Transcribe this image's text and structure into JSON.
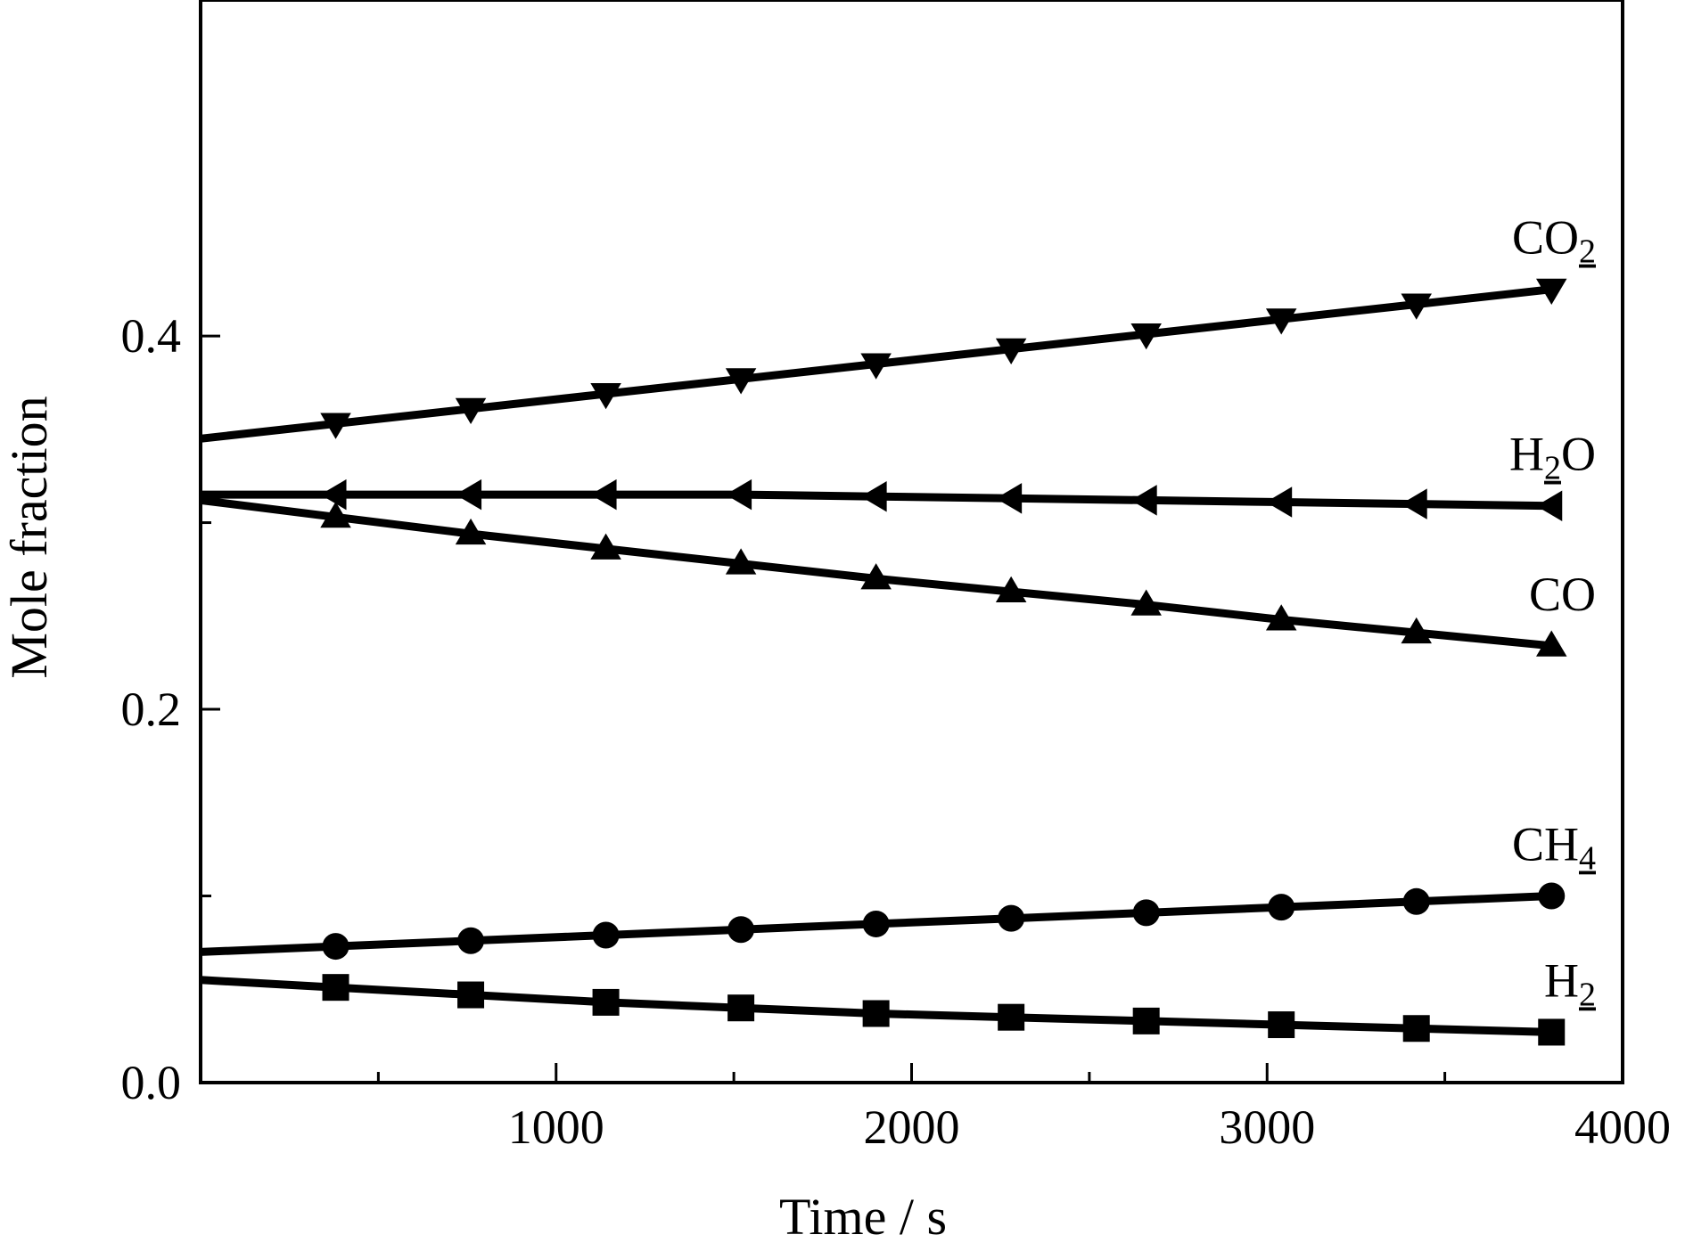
{
  "chart_data": {
    "type": "line",
    "xlabel": "Time / s",
    "ylabel": "Mole fraction",
    "xlim": [
      0,
      4000
    ],
    "ylim": [
      0,
      0.58
    ],
    "x_ticks": [
      1000,
      2000,
      3000,
      4000
    ],
    "x_minor_ticks": [
      500,
      1500,
      2500,
      3500
    ],
    "y_ticks": [
      0.0,
      0.2,
      0.4
    ],
    "y_tick_labels": [
      "0.0",
      "0.2",
      "0.4"
    ],
    "y_minor_ticks": [
      0.1,
      0.3
    ],
    "grid": false,
    "legend": "none; series labelled directly at right end of each line",
    "x": [
      0,
      380,
      760,
      1140,
      1520,
      1900,
      2280,
      2660,
      3040,
      3420,
      3800
    ],
    "series": [
      {
        "name": "CO2",
        "label_main": "CO",
        "label_sub": "2",
        "marker": "triangle-down",
        "values": [
          0.345,
          0.353,
          0.361,
          0.369,
          0.377,
          0.385,
          0.393,
          0.401,
          0.409,
          0.417,
          0.425
        ]
      },
      {
        "name": "H2O",
        "label_main": "H",
        "label_sub": "2",
        "label_after": "O",
        "marker": "triangle-left",
        "values": [
          0.315,
          0.315,
          0.315,
          0.315,
          0.315,
          0.314,
          0.313,
          0.312,
          0.311,
          0.31,
          0.309
        ]
      },
      {
        "name": "CO",
        "label_main": "CO",
        "marker": "triangle-up",
        "values": [
          0.312,
          0.303,
          0.294,
          0.286,
          0.278,
          0.27,
          0.263,
          0.256,
          0.248,
          0.241,
          0.234
        ]
      },
      {
        "name": "CH4",
        "label_main": "CH",
        "label_sub": "4",
        "marker": "circle",
        "values": [
          0.07,
          0.073,
          0.076,
          0.079,
          0.082,
          0.085,
          0.088,
          0.091,
          0.094,
          0.097,
          0.1
        ]
      },
      {
        "name": "H2",
        "label_main": "H",
        "label_sub": "2",
        "marker": "square",
        "values": [
          0.055,
          0.051,
          0.047,
          0.043,
          0.04,
          0.037,
          0.035,
          0.033,
          0.031,
          0.029,
          0.027
        ]
      }
    ]
  }
}
